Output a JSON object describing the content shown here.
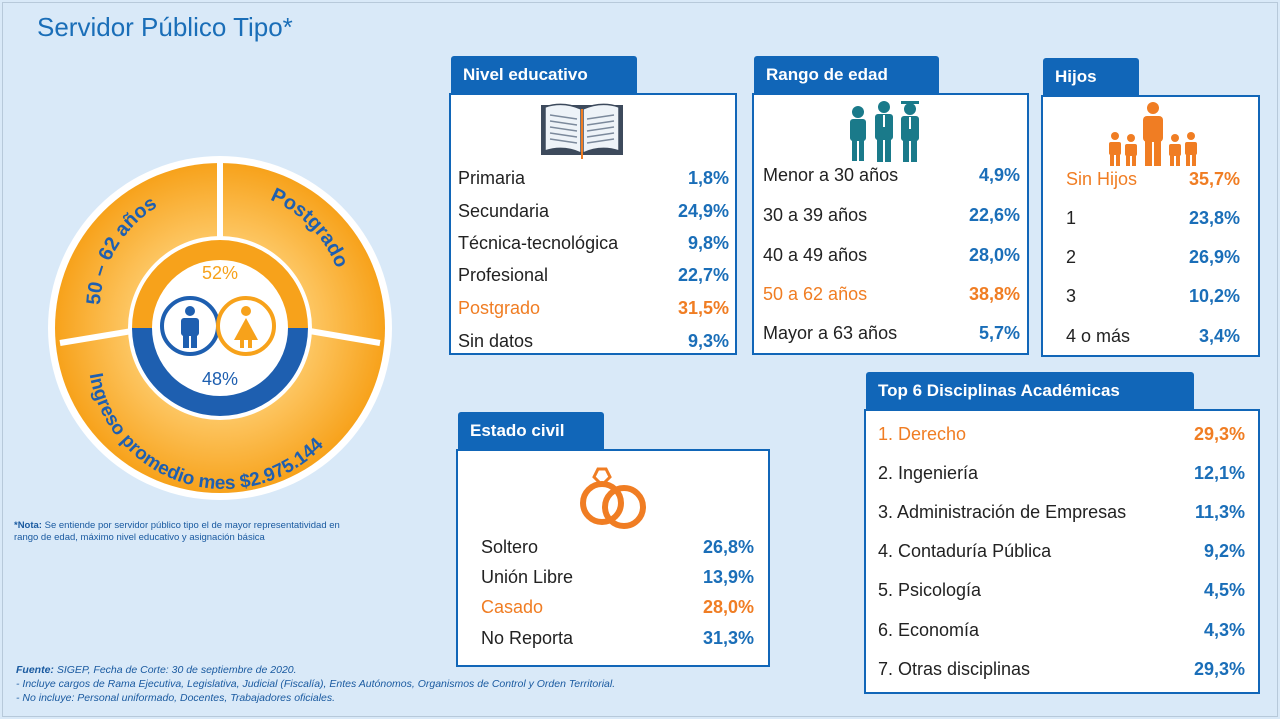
{
  "title": "Servidor Público Tipo*",
  "ring": {
    "age": "50 – 62 años",
    "education": "Postgrado",
    "income": "Ingreso promedio mes $2.975.144",
    "female_pct": "52%",
    "male_pct": "48%"
  },
  "note": {
    "label": "*Nota:",
    "text": "Se entiende por servidor público tipo el de mayor representatividad en rango de edad, máximo nivel educativo y asignación básica"
  },
  "footer": {
    "source_label": "Fuente:",
    "source": "SIGEP, Fecha de Corte: 30 de septiembre de 2020.",
    "line2": "- Incluye cargos de Rama Ejecutiva, Legislativa, Judicial (Fiscalía), Entes Autónomos, Organismos de Control  y Orden Territorial.",
    "line3": "- No incluye: Personal uniformado, Docentes, Trabajadores oficiales."
  },
  "nivel": {
    "title": "Nivel educativo",
    "rows": [
      {
        "k": "Primaria",
        "v": "1,8%"
      },
      {
        "k": "Secundaria",
        "v": "24,9%"
      },
      {
        "k": "Técnica-tecnológica",
        "v": "9,8%"
      },
      {
        "k": "Profesional",
        "v": "22,7%"
      },
      {
        "k": "Postgrado",
        "v": "31,5%"
      },
      {
        "k": "Sin datos",
        "v": "9,3%"
      }
    ]
  },
  "edad": {
    "title": "Rango de edad",
    "rows": [
      {
        "k": "Menor a 30 años",
        "v": "4,9%"
      },
      {
        "k": "30 a 39 años",
        "v": "22,6%"
      },
      {
        "k": "40 a 49 años",
        "v": "28,0%"
      },
      {
        "k": "50 a 62 años",
        "v": "38,8%"
      },
      {
        "k": "Mayor a 63 años",
        "v": "5,7%"
      }
    ]
  },
  "hijos": {
    "title": "Hijos",
    "rows": [
      {
        "k": "Sin Hijos",
        "v": "35,7%"
      },
      {
        "k": "1",
        "v": "23,8%"
      },
      {
        "k": "2",
        "v": "26,9%"
      },
      {
        "k": "3",
        "v": "10,2%"
      },
      {
        "k": "4 o más",
        "v": "3,4%"
      }
    ]
  },
  "civil": {
    "title": "Estado civil",
    "rows": [
      {
        "k": "Soltero",
        "v": "26,8%"
      },
      {
        "k": "Unión Libre",
        "v": "13,9%"
      },
      {
        "k": "Casado",
        "v": "28,0%"
      },
      {
        "k": "No Reporta",
        "v": "31,3%"
      }
    ]
  },
  "disciplinas": {
    "title": "Top 6 Disciplinas Académicas",
    "rows": [
      {
        "k": "1. Derecho",
        "v": "29,3%"
      },
      {
        "k": "2. Ingeniería",
        "v": "12,1%"
      },
      {
        "k": "3. Administración de Empresas",
        "v": "11,3%"
      },
      {
        "k": "4. Contaduría Pública",
        "v": "9,2%"
      },
      {
        "k": "5. Psicología",
        "v": "4,5%"
      },
      {
        "k": "6. Economía",
        "v": "4,3%"
      },
      {
        "k": "7. Otras disciplinas",
        "v": "29,3%"
      }
    ]
  },
  "colors": {
    "blue": "#1166b8",
    "orange": "#f07d23",
    "bg": "#d9e9f8"
  },
  "icons": [
    "book-icon",
    "people-icon",
    "family-icon",
    "rings-icon",
    "male-icon",
    "female-icon"
  ]
}
